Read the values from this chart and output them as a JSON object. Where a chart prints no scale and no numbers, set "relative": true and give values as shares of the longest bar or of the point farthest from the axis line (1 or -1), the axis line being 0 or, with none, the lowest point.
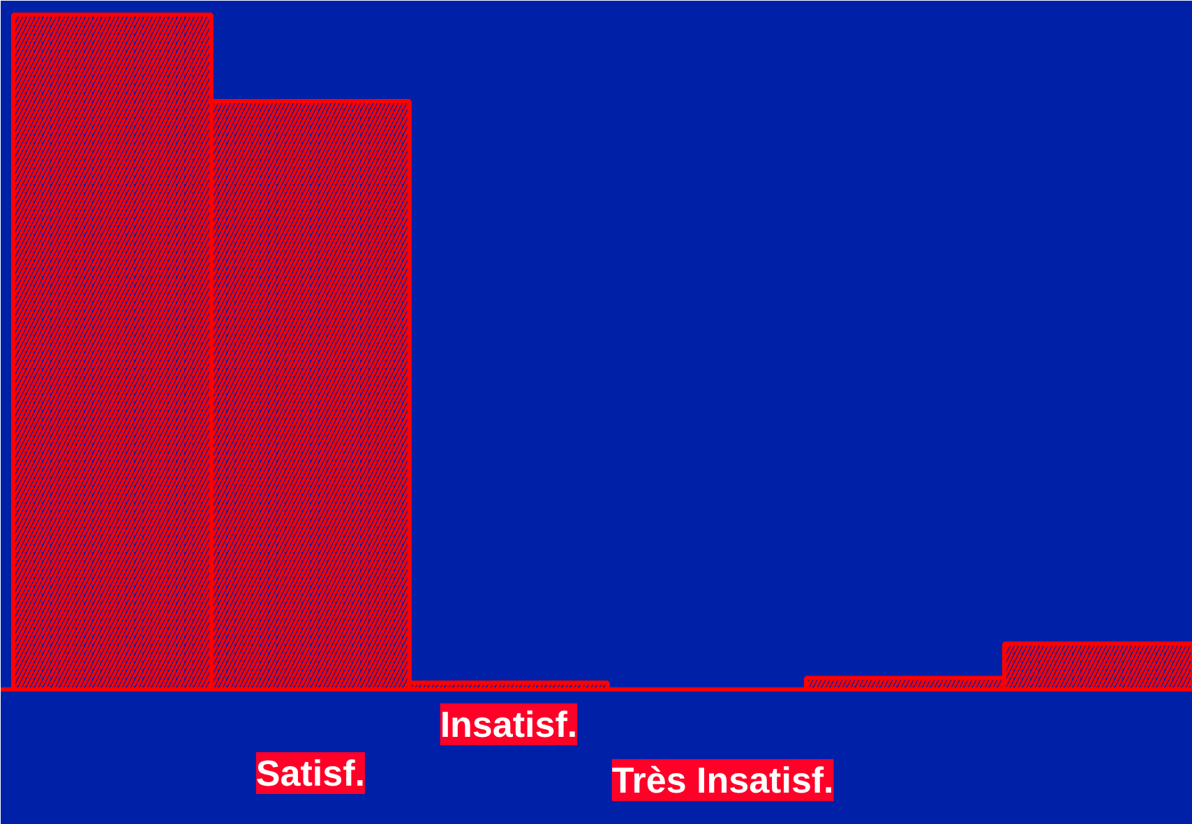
{
  "chart_data": {
    "type": "bar",
    "relative": true,
    "categories": [
      null,
      "Satisf.",
      "Insatisf.",
      "Très Insatisf.",
      null,
      null
    ],
    "values": [
      1,
      0.872,
      0.01,
      0,
      0.017,
      0.068
    ],
    "color": "#ff0000"
  }
}
